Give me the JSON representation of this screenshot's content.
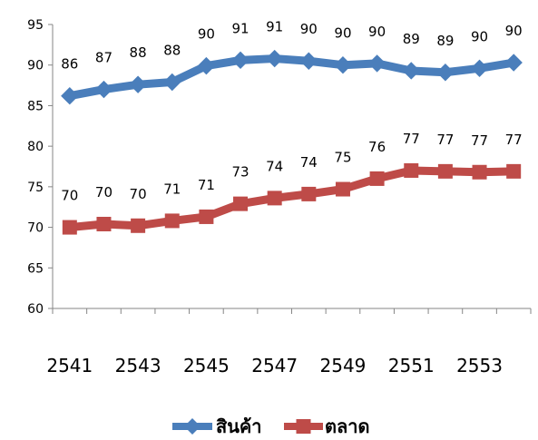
{
  "chart_data": {
    "type": "line",
    "title": "",
    "xlabel": "",
    "ylabel": "",
    "x": [
      2541,
      2542,
      2543,
      2544,
      2545,
      2546,
      2547,
      2548,
      2549,
      2550,
      2551,
      2552,
      2553,
      2554
    ],
    "x_tick_labels": [
      "2541",
      "2543",
      "2545",
      "2547",
      "2549",
      "2551",
      "2553"
    ],
    "y_ticks": [
      60,
      65,
      70,
      75,
      80,
      85,
      90,
      95
    ],
    "ylim": [
      60,
      95
    ],
    "grid": false,
    "legend_position": "bottom",
    "series": [
      {
        "name": "สินค้า",
        "color": "#4a7ebb",
        "marker": "diamond",
        "values": [
          86.2,
          87.0,
          87.6,
          87.9,
          89.9,
          90.6,
          90.8,
          90.5,
          90.0,
          90.2,
          89.3,
          89.1,
          89.6,
          90.3
        ],
        "labels": [
          "86",
          "87",
          "88",
          "88",
          "90",
          "91",
          "91",
          "90",
          "90",
          "90",
          "89",
          "89",
          "90",
          "90"
        ]
      },
      {
        "name": "ตลาด",
        "color": "#be4b48",
        "marker": "square",
        "values": [
          70.0,
          70.4,
          70.2,
          70.8,
          71.3,
          72.9,
          73.6,
          74.1,
          74.7,
          76.0,
          77.0,
          76.9,
          76.8,
          76.9
        ],
        "labels": [
          "70",
          "70",
          "70",
          "71",
          "71",
          "73",
          "74",
          "74",
          "75",
          "76",
          "77",
          "77",
          "77",
          "77"
        ]
      }
    ]
  }
}
